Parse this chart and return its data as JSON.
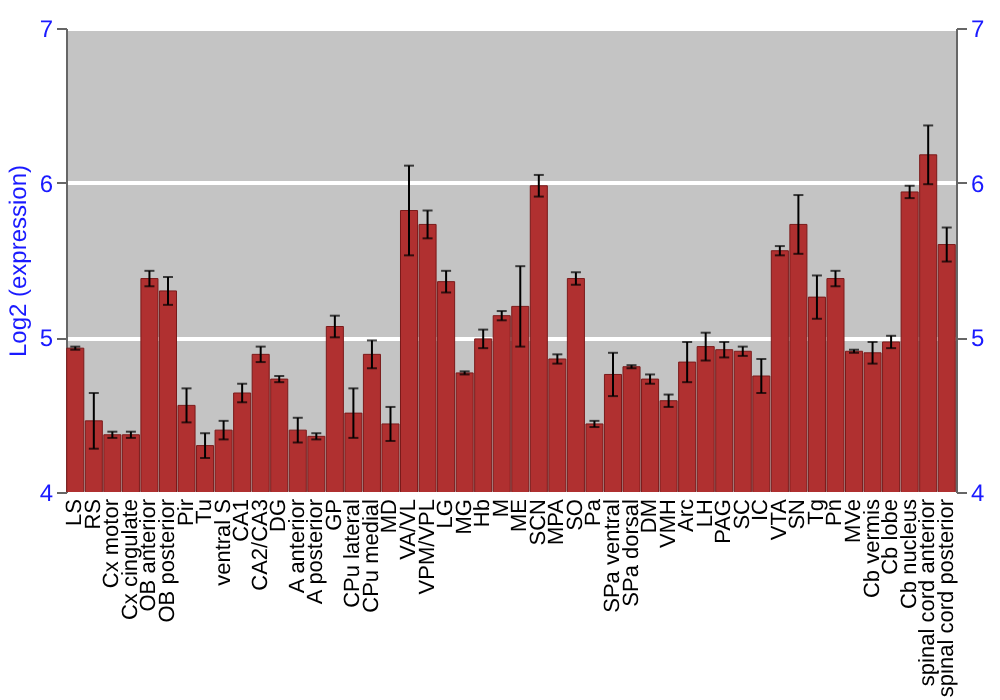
{
  "chart_data": {
    "type": "bar",
    "ylabel": "Log2 (expression)",
    "categories": [
      "LS",
      "RS",
      "Cx motor",
      "Cx cingulate",
      "OB anterior",
      "OB posterior",
      "Pir",
      "Tu",
      "ventral S",
      "CA1",
      "CA2/CA3",
      "DG",
      "A anterior",
      "A posterior",
      "GP",
      "CPu lateral",
      "CPu medial",
      "MD",
      "VA/VL",
      "VPM/VPL",
      "LG",
      "MG",
      "Hb",
      "M",
      "ME",
      "SCN",
      "MPA",
      "SO",
      "Pa",
      "SPa ventral",
      "SPa dorsal",
      "DM",
      "VMH",
      "Arc",
      "LH",
      "PAG",
      "SC",
      "IC",
      "VTA",
      "SN",
      "Tg",
      "Pn",
      "MVe",
      "Cb vermis",
      "Cb lobe",
      "Cb nucleus",
      "spinal cord anterior",
      "spinal cord posterior"
    ],
    "values": [
      4.93,
      4.46,
      4.37,
      4.37,
      5.38,
      5.3,
      4.56,
      4.3,
      4.4,
      4.64,
      4.89,
      4.73,
      4.4,
      4.36,
      5.07,
      4.51,
      4.89,
      4.44,
      5.82,
      5.73,
      5.36,
      4.77,
      4.99,
      5.14,
      5.2,
      5.98,
      4.86,
      5.38,
      4.44,
      4.76,
      4.81,
      4.73,
      4.59,
      4.84,
      4.94,
      4.92,
      4.91,
      4.75,
      5.56,
      5.73,
      5.26,
      5.38,
      4.91,
      4.9,
      4.97,
      5.94,
      6.18,
      5.6
    ],
    "errors": [
      0.01,
      0.18,
      0.02,
      0.02,
      0.05,
      0.09,
      0.11,
      0.08,
      0.06,
      0.06,
      0.05,
      0.02,
      0.08,
      0.02,
      0.07,
      0.16,
      0.09,
      0.11,
      0.29,
      0.09,
      0.07,
      0.01,
      0.06,
      0.03,
      0.26,
      0.07,
      0.03,
      0.04,
      0.02,
      0.14,
      0.01,
      0.03,
      0.04,
      0.13,
      0.09,
      0.05,
      0.03,
      0.11,
      0.03,
      0.19,
      0.14,
      0.05,
      0.01,
      0.07,
      0.04,
      0.04,
      0.19,
      0.11
    ],
    "color": "#b03030",
    "ylim": [
      4,
      7
    ],
    "yticks": [
      4,
      5,
      6,
      7
    ],
    "y2lim": [
      4,
      7
    ],
    "y2ticks": [
      4,
      5,
      6,
      7
    ],
    "grid": "y"
  }
}
